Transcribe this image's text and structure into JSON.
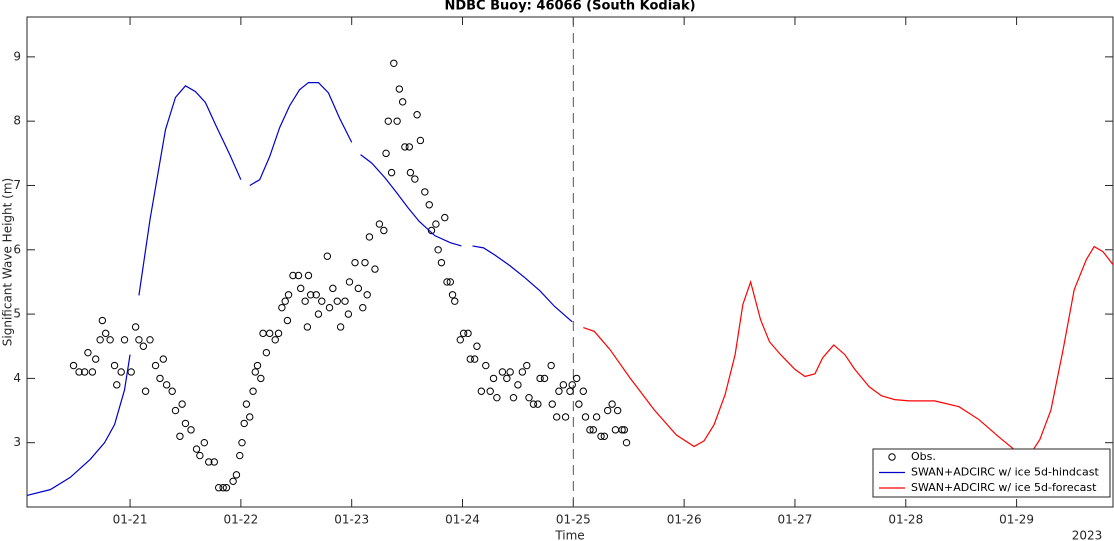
{
  "chart_data": {
    "type": "line",
    "title": "NDBC Buoy: 46066 (South Kodiak)",
    "xlabel": "Time",
    "ylabel": "Significant Wave Height (m)",
    "year_label": "2023",
    "xlim": [
      20.07,
      29.87
    ],
    "xticks": [
      {
        "value": 21,
        "label": "01-21"
      },
      {
        "value": 22,
        "label": "01-22"
      },
      {
        "value": 23,
        "label": "01-23"
      },
      {
        "value": 24,
        "label": "01-24"
      },
      {
        "value": 25,
        "label": "01-25"
      },
      {
        "value": 26,
        "label": "01-26"
      },
      {
        "value": 27,
        "label": "01-27"
      },
      {
        "value": 28,
        "label": "01-28"
      },
      {
        "value": 29,
        "label": "01-29"
      }
    ],
    "ylim": [
      2.0,
      9.62
    ],
    "yticks": [
      3,
      4,
      5,
      6,
      7,
      8,
      9
    ],
    "forecast_start": 25,
    "legend": "lower right",
    "series": [
      {
        "name": "Obs.",
        "type": "scatter",
        "color": "#000000",
        "x": [
          20.49,
          20.54,
          20.59,
          20.62,
          20.66,
          20.69,
          20.73,
          20.75,
          20.78,
          20.82,
          20.86,
          20.88,
          20.92,
          20.95,
          21.01,
          21.05,
          21.08,
          21.12,
          21.14,
          21.18,
          21.23,
          21.27,
          21.3,
          21.33,
          21.38,
          21.41,
          21.45,
          21.47,
          21.5,
          21.55,
          21.6,
          21.63,
          21.67,
          21.71,
          21.76,
          21.8,
          21.84,
          21.87,
          21.93,
          21.96,
          21.99,
          22.01,
          22.03,
          22.05,
          22.08,
          22.11,
          22.13,
          22.15,
          22.18,
          22.2,
          22.23,
          22.26,
          22.31,
          22.34,
          22.37,
          22.4,
          22.42,
          22.43,
          22.47,
          22.52,
          22.54,
          22.58,
          22.6,
          22.61,
          22.63,
          22.68,
          22.7,
          22.73,
          22.78,
          22.8,
          22.83,
          22.87,
          22.9,
          22.94,
          22.97,
          22.98,
          23.03,
          23.06,
          23.1,
          23.12,
          23.14,
          23.16,
          23.21,
          23.25,
          23.29,
          23.31,
          23.33,
          23.36,
          23.38,
          23.41,
          23.43,
          23.46,
          23.48,
          23.52,
          23.53,
          23.57,
          23.59,
          23.62,
          23.66,
          23.7,
          23.72,
          23.76,
          23.78,
          23.81,
          23.84,
          23.86,
          23.89,
          23.91,
          23.93,
          23.98,
          24.01,
          24.05,
          24.07,
          24.11,
          24.13,
          24.17,
          24.21,
          24.25,
          24.28,
          24.31,
          24.36,
          24.4,
          24.43,
          24.46,
          24.5,
          24.54,
          24.58,
          24.6,
          24.64,
          24.68,
          24.7,
          24.74,
          24.8,
          24.81,
          24.85,
          24.87,
          24.91,
          24.93,
          24.97,
          24.99,
          25.03,
          25.05,
          25.09,
          25.11,
          25.15,
          25.18,
          25.21,
          25.25,
          25.28,
          25.31,
          25.35,
          25.38,
          25.4,
          25.44,
          25.46,
          25.48
        ],
        "values": [
          4.2,
          4.1,
          4.1,
          4.4,
          4.1,
          4.3,
          4.6,
          4.9,
          4.7,
          4.6,
          4.2,
          3.9,
          4.1,
          4.6,
          4.1,
          4.8,
          4.6,
          4.5,
          3.8,
          4.6,
          4.2,
          4.0,
          4.3,
          3.9,
          3.8,
          3.5,
          3.1,
          3.6,
          3.3,
          3.2,
          2.9,
          2.8,
          3.0,
          2.7,
          2.7,
          2.3,
          2.3,
          2.3,
          2.4,
          2.5,
          2.8,
          3.0,
          3.3,
          3.6,
          3.4,
          3.8,
          4.1,
          4.2,
          4.0,
          4.7,
          4.4,
          4.7,
          4.6,
          4.7,
          5.1,
          5.2,
          4.9,
          5.3,
          5.6,
          5.6,
          5.4,
          5.2,
          4.8,
          5.6,
          5.3,
          5.3,
          5.0,
          5.2,
          5.9,
          5.1,
          5.4,
          5.2,
          4.8,
          5.2,
          5.0,
          5.5,
          5.8,
          5.4,
          5.1,
          5.8,
          5.3,
          6.2,
          5.7,
          6.4,
          6.3,
          7.5,
          8.0,
          7.2,
          8.9,
          8.0,
          8.5,
          8.3,
          7.6,
          7.6,
          7.2,
          7.1,
          8.1,
          7.7,
          6.9,
          6.7,
          6.3,
          6.4,
          6.0,
          5.8,
          6.5,
          5.5,
          5.5,
          5.3,
          5.2,
          4.6,
          4.7,
          4.7,
          4.3,
          4.3,
          4.5,
          3.8,
          4.2,
          3.8,
          4.0,
          3.7,
          4.1,
          4.0,
          4.1,
          3.7,
          3.9,
          4.1,
          4.2,
          3.7,
          3.6,
          3.6,
          4.0,
          4.0,
          4.2,
          3.6,
          3.4,
          3.8,
          3.9,
          3.4,
          3.8,
          3.9,
          4.0,
          3.6,
          3.8,
          3.4,
          3.2,
          3.2,
          3.4,
          3.1,
          3.1,
          3.5,
          3.6,
          3.2,
          3.5,
          3.2,
          3.2,
          3.0
        ]
      },
      {
        "name": "SWAN+ADCIRC w/ ice 5d-hindcast",
        "type": "line",
        "color": "#0000cc",
        "x": [
          20.07,
          20.28,
          20.46,
          20.64,
          20.77,
          20.86,
          20.95,
          21.0,
          null,
          21.08,
          21.18,
          21.32,
          21.41,
          21.5,
          21.59,
          21.68,
          21.77,
          21.9,
          22.0,
          null,
          22.08,
          22.17,
          22.26,
          22.35,
          22.44,
          22.53,
          22.61,
          22.7,
          22.79,
          22.89,
          23.0,
          null,
          23.08,
          23.18,
          23.3,
          23.4,
          23.51,
          23.61,
          23.75,
          23.89,
          23.99,
          null,
          24.09,
          24.19,
          24.29,
          24.43,
          24.56,
          24.7,
          24.83,
          24.99
        ],
        "values": [
          2.18,
          2.27,
          2.46,
          2.74,
          3.0,
          3.28,
          3.82,
          4.37,
          null,
          5.29,
          6.47,
          7.87,
          8.37,
          8.55,
          8.46,
          8.29,
          7.95,
          7.48,
          7.09,
          null,
          7.0,
          7.09,
          7.45,
          7.9,
          8.24,
          8.49,
          8.6,
          8.6,
          8.44,
          8.05,
          7.67,
          null,
          7.48,
          7.35,
          7.12,
          6.9,
          6.65,
          6.44,
          6.22,
          6.11,
          6.06,
          null,
          6.06,
          6.03,
          5.92,
          5.75,
          5.57,
          5.36,
          5.12,
          4.88
        ]
      },
      {
        "name": "SWAN+ADCIRC w/ ice 5d-forecast",
        "type": "line",
        "color": "#ff0000",
        "x": [
          25.09,
          25.19,
          25.33,
          25.51,
          25.73,
          25.93,
          26.09,
          26.18,
          26.27,
          26.37,
          26.46,
          26.53,
          26.6,
          26.69,
          26.77,
          26.87,
          27.0,
          27.09,
          27.18,
          27.25,
          27.35,
          27.45,
          27.54,
          27.67,
          27.78,
          27.9,
          28.03,
          28.26,
          28.48,
          28.66,
          28.84,
          28.98,
          29.12,
          29.21,
          29.31,
          29.42,
          29.52,
          29.63,
          29.7,
          29.78,
          29.87
        ],
        "values": [
          4.79,
          4.73,
          4.45,
          4.01,
          3.51,
          3.12,
          2.94,
          3.03,
          3.28,
          3.75,
          4.37,
          5.15,
          5.5,
          4.91,
          4.57,
          4.37,
          4.14,
          4.03,
          4.07,
          4.32,
          4.52,
          4.37,
          4.14,
          3.87,
          3.73,
          3.67,
          3.65,
          3.65,
          3.56,
          3.36,
          3.09,
          2.89,
          2.81,
          3.05,
          3.51,
          4.45,
          5.38,
          5.85,
          6.05,
          5.97,
          5.77
        ]
      }
    ]
  }
}
